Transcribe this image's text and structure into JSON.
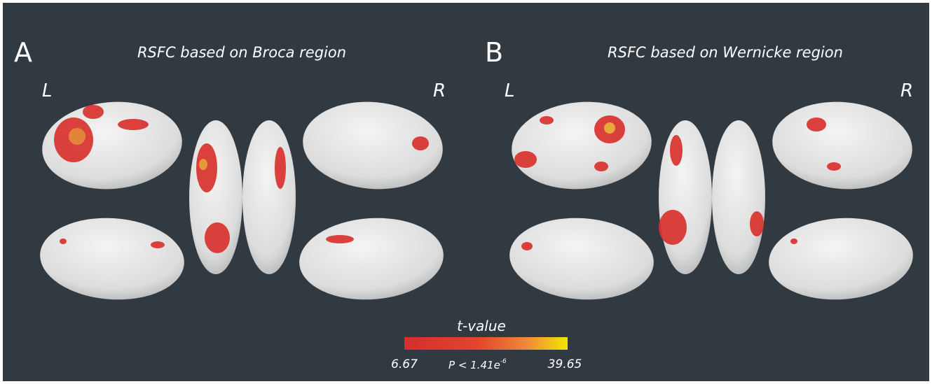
{
  "panels": [
    {
      "label": "A",
      "title": "RSFC based on Broca region",
      "left": "L",
      "right": "R"
    },
    {
      "label": "B",
      "title": "RSFC based on Wernicke region",
      "left": "L",
      "right": "R"
    }
  ],
  "colorbar": {
    "title": "t-value",
    "min_label": "6.67",
    "max_label": "39.65",
    "p_text": "P < 1.41",
    "p_base": "e",
    "p_exp": "-6"
  }
}
